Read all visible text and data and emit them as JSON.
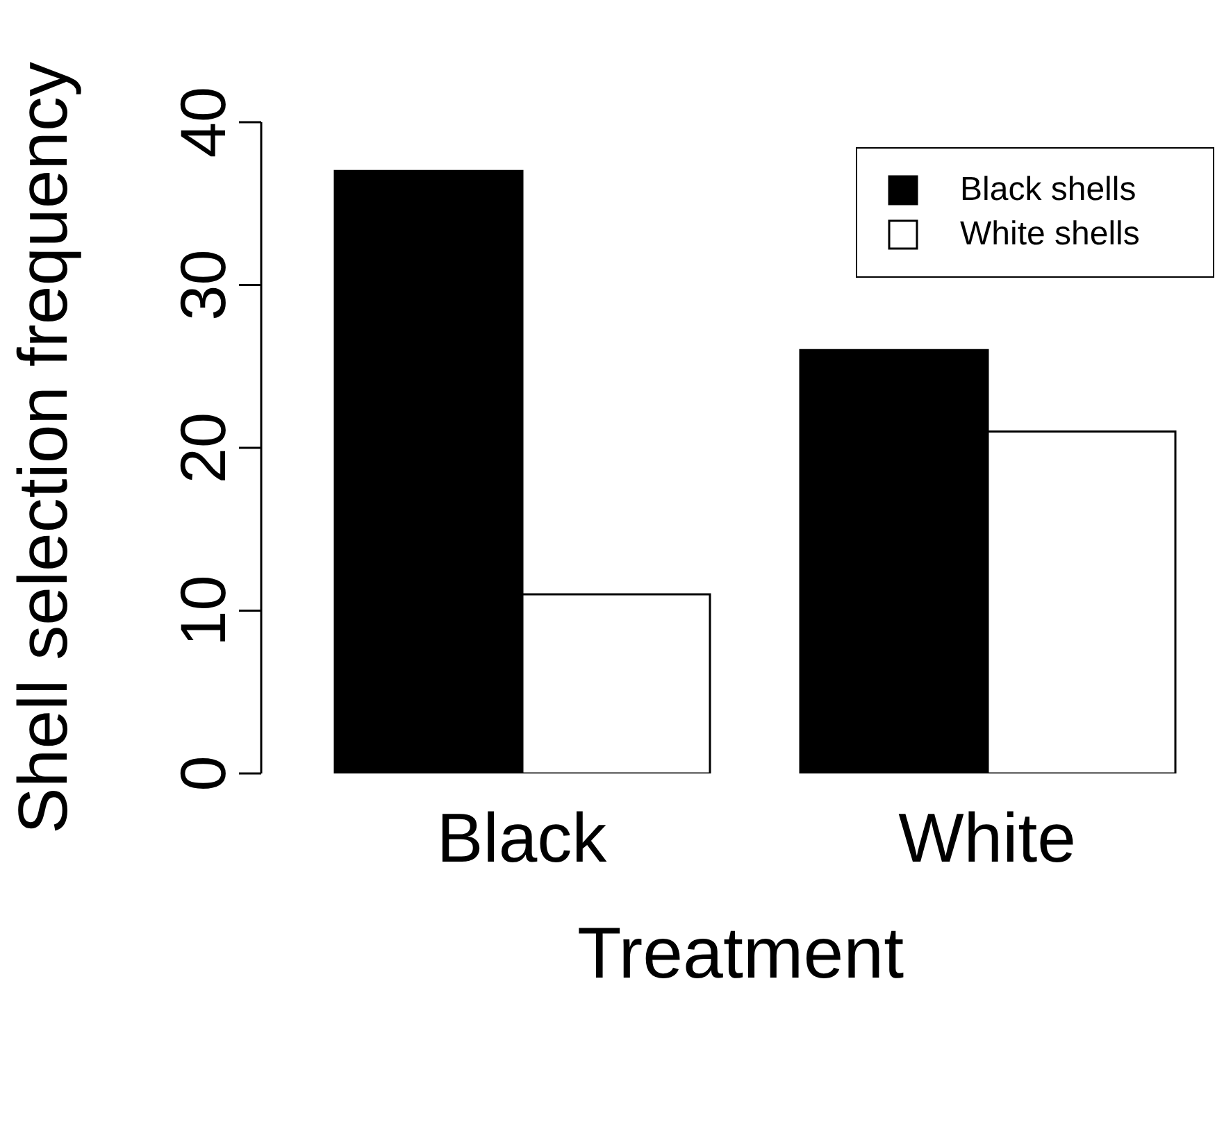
{
  "chart_data": {
    "type": "bar",
    "xlabel": "Treatment",
    "ylabel": "Shell selection frequency",
    "categories": [
      "Black",
      "White"
    ],
    "series": [
      {
        "name": "Black shells",
        "color": "#000000",
        "values": [
          37,
          26
        ]
      },
      {
        "name": "White shells",
        "color": "#ffffff",
        "values": [
          11,
          21
        ]
      }
    ],
    "ylim": [
      0,
      40
    ],
    "yticks": [
      0,
      10,
      20,
      30,
      40
    ],
    "legend": "top right",
    "grid": false
  }
}
